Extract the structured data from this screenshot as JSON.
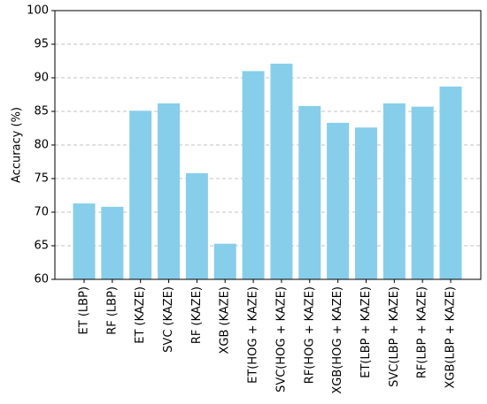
{
  "chart_data": {
    "type": "bar",
    "y_label": "Accuracy (%)",
    "categories": [
      "ET (LBP)",
      "RF (LBP)",
      "ET (KAZE)",
      "SVC (KAZE)",
      "RF (KAZE)",
      "XGB (KAZE)",
      "ET(HOG + KAZE)",
      "SVC(HOG + KAZE)",
      "RF(HOG + KAZE)",
      "XGB(HOG + KAZE)",
      "ET(LBP + KAZE)",
      "SVC(LBP + KAZE)",
      "RF(LBP + KAZE)",
      "XGB(LBP + KAZE)"
    ],
    "values": [
      71.3,
      70.8,
      85.1,
      86.2,
      75.8,
      65.3,
      91.0,
      92.1,
      85.8,
      83.3,
      82.6,
      86.2,
      85.7,
      88.7
    ],
    "color": "#87ceeb",
    "ylim": [
      60,
      100
    ],
    "yticks": [
      60,
      65,
      70,
      75,
      80,
      85,
      90,
      95,
      100
    ],
    "grid": true
  }
}
